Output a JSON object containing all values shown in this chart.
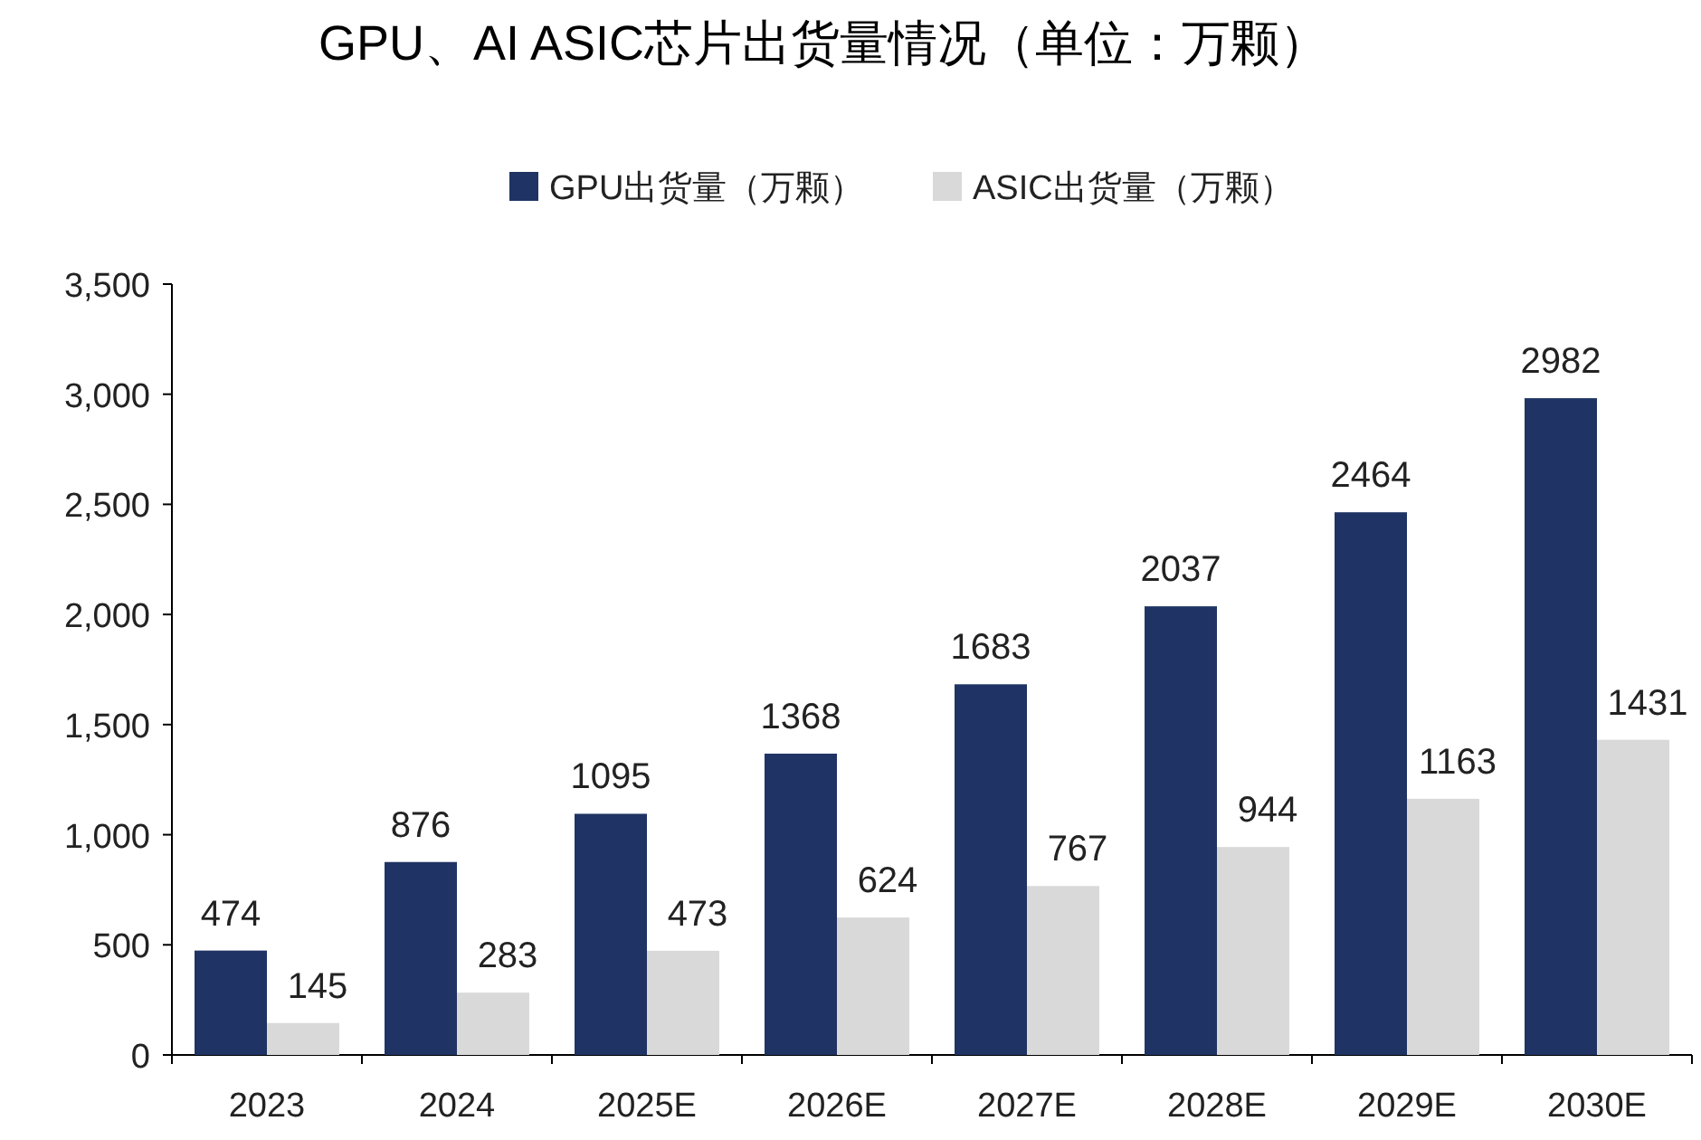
{
  "chart_data": {
    "type": "bar",
    "title": "GPU、AI ASIC芯片出货量情况（单位：万颗）",
    "categories": [
      "2023",
      "2024",
      "2025E",
      "2026E",
      "2027E",
      "2028E",
      "2029E",
      "2030E"
    ],
    "series": [
      {
        "name": "GPU出货量（万颗）",
        "color": "#1f3464",
        "values": [
          474,
          876,
          1095,
          1368,
          1683,
          2037,
          2464,
          2982
        ]
      },
      {
        "name": "ASIC出货量（万颗）",
        "color": "#d9d9d9",
        "values": [
          145,
          283,
          473,
          624,
          767,
          944,
          1163,
          1431
        ]
      }
    ],
    "ylim": [
      0,
      3500
    ],
    "yticks": [
      0,
      500,
      {
        "value": 1000,
        "label": "1,000"
      },
      {
        "value": 1500,
        "label": "1,500"
      },
      {
        "value": 2000,
        "label": "2,000"
      },
      {
        "value": 2500,
        "label": "2,500"
      },
      {
        "value": 3000,
        "label": "3,000"
      },
      {
        "value": 3500,
        "label": "3,500"
      }
    ],
    "data_labels": true,
    "legend": "top"
  }
}
